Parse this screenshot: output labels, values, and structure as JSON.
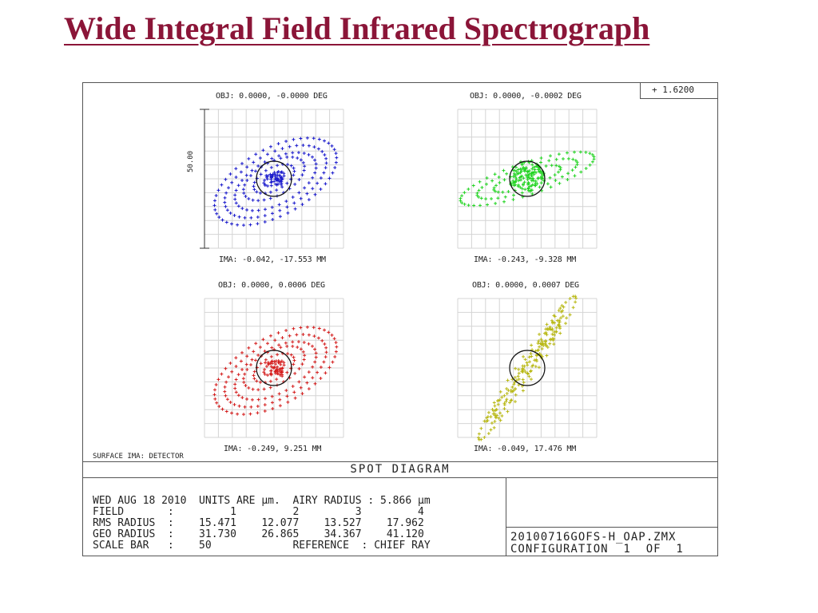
{
  "slide_title": "Wide Integral Field Infrared Spectrograph",
  "wavelength": "+  1.6200",
  "surface_label": "SURFACE IMA: DETECTOR",
  "diagram_title": "SPOT DIAGRAM",
  "scale_bar_value": "50.00",
  "fields": [
    {
      "obj": "OBJ: 0.0000, -0.0000 DEG",
      "ima": "IMA: -0.042, -17.553 MM",
      "color": "#1a1acc",
      "pattern": "rings"
    },
    {
      "obj": "OBJ: 0.0000, -0.0002 DEG",
      "ima": "IMA: -0.243, -9.328 MM",
      "color": "#22d422",
      "pattern": "saturn"
    },
    {
      "obj": "OBJ: 0.0000, 0.0006 DEG",
      "ima": "IMA: -0.249, 9.251 MM",
      "color": "#d41c1c",
      "pattern": "rings"
    },
    {
      "obj": "OBJ: 0.0000, 0.0007 DEG",
      "ima": "IMA: -0.049, 17.476 MM",
      "color": "#b8b814",
      "pattern": "streak"
    }
  ],
  "info": {
    "date_line": "WED AUG 18 2010  UNITS ARE µm.  AIRY RADIUS : 5.866 µm",
    "field_line": "FIELD       :         1         2         3         4",
    "rms_line": "RMS RADIUS  :    15.471    12.077    13.527    17.962",
    "geo_line": "GEO RADIUS  :    31.730    26.865    34.367    41.120",
    "scale_line": "SCALE BAR   :    50             REFERENCE  : CHIEF RAY"
  },
  "file": {
    "name": "20100716GOFS-H_OAP.ZMX",
    "config": "CONFIGURATION  1  OF  1"
  }
}
